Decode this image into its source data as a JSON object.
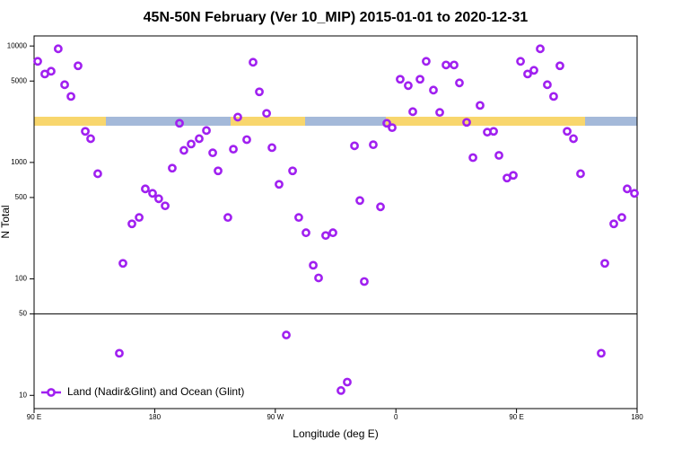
{
  "chart_data": {
    "type": "scatter",
    "title": "45N-50N February (Ver 10_MIP)   2015-01-01 to 2020-12-31",
    "x_label": "Longitude (deg E)",
    "y_label": "N Total",
    "xlim": [
      90,
      540
    ],
    "xticks": [
      {
        "value": 90,
        "label": "90 E"
      },
      {
        "value": 180,
        "label": "180"
      },
      {
        "value": 270,
        "label": "90 W"
      },
      {
        "value": 360,
        "label": "0"
      },
      {
        "value": 450,
        "label": "90 E"
      },
      {
        "value": 540,
        "label": "180"
      }
    ],
    "ylim": [
      7.7,
      12200
    ],
    "log_y": true,
    "yticks": [
      10,
      50,
      100,
      500,
      1000,
      5000,
      10000
    ],
    "reference_line": 50,
    "legend": "bottom-left",
    "series": [
      {
        "name": "Land (Nadir&Glint) and Ocean (Glint)",
        "color": "#a020f0",
        "x": [
          92.7,
          98,
          102.7,
          108,
          112.8,
          117.5,
          122.8,
          128.2,
          132.2,
          137.5,
          153.6,
          156.3,
          163,
          168.4,
          173,
          178.4,
          183,
          187.8,
          193.1,
          198.5,
          201.8,
          207.2,
          213.2,
          218.6,
          223.3,
          227.3,
          234.6,
          238.7,
          242,
          248.7,
          253.4,
          258.1,
          263.5,
          267.5,
          272.8,
          278.2,
          282.9,
          287.5,
          292.9,
          298.3,
          302.3,
          307.6,
          313,
          319,
          323.7,
          329.1,
          333.1,
          336.4,
          343.1,
          348.5,
          353.2,
          357.2,
          363.2,
          369.2,
          372.6,
          378,
          382.6,
          388,
          392.7,
          397.4,
          403.4,
          407.4,
          412.8,
          417.5,
          422.8,
          428.2,
          432.9,
          436.9,
          442.9,
          447.6,
          453,
          458.3,
          463,
          467.7,
          473,
          477.7,
          482.4,
          487.8,
          492.5,
          497.8,
          513.2,
          515.9,
          522.6,
          528.6,
          532.6,
          538
        ],
        "values": [
          7380,
          5750,
          6070,
          9460,
          4650,
          3690,
          6760,
          1850,
          1600,
          800,
          23,
          136,
          297,
          337,
          593,
          543,
          488,
          424,
          893,
          2170,
          1270,
          1440,
          1600,
          1880,
          1210,
          847,
          337,
          1300,
          2450,
          1570,
          7250,
          4040,
          2640,
          1340,
          649,
          33,
          847,
          337,
          249,
          131,
          102,
          236,
          249,
          11,
          13,
          1390,
          471,
          95,
          1420,
          416,
          2170,
          1990,
          5180,
          4570,
          2730,
          5180,
          7380,
          4180,
          2690,
          6870,
          6870,
          4820,
          2210,
          1100,
          3090,
          1820,
          1850,
          1150,
          735,
          775,
          7380,
          5750,
          6180,
          9460,
          4650,
          3690,
          6760,
          1850,
          1600,
          800,
          23,
          136,
          297,
          337,
          593,
          543
        ]
      }
    ]
  }
}
